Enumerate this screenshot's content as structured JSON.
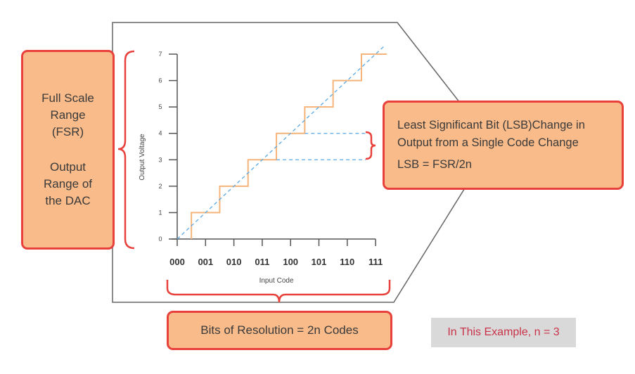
{
  "left_box": {
    "line1": "Full Scale",
    "line2": "Range",
    "line3": "(FSR)",
    "line4": "Output",
    "line5": "Range of",
    "line6": "the DAC"
  },
  "lsb_box": {
    "line1": "Least Significant Bit (LSB)Change in",
    "line2": "Output from a Single Code Change",
    "formula": "LSB = FSR/2n"
  },
  "bits_box": {
    "label": "Bits of Resolution = 2n Codes"
  },
  "example": {
    "label": "In This Example, n = 3"
  },
  "colors": {
    "box_fill": "#f9bb8a",
    "box_border": "#e8413c",
    "staircase": "#f5b47a",
    "ideal_line": "#5aa9e6",
    "brace": "#e8413c"
  },
  "chart_data": {
    "type": "line",
    "xlabel": "Input Code",
    "ylabel": "Output Voltage",
    "x_ticks": [
      "000",
      "001",
      "010",
      "011",
      "100",
      "101",
      "110",
      "111"
    ],
    "y_ticks": [
      "0",
      "1",
      "2",
      "3",
      "4",
      "5",
      "6",
      "7"
    ],
    "ylim": [
      0,
      7
    ],
    "series": [
      {
        "style": "staircase",
        "x": [
          0,
          1,
          2,
          3,
          4,
          5,
          6,
          7
        ],
        "values": [
          0,
          1,
          2,
          3,
          4,
          5,
          6,
          7
        ]
      },
      {
        "style": "dashed-ideal",
        "x": [
          0,
          7
        ],
        "values": [
          0,
          7
        ]
      }
    ],
    "annotation": {
      "lsb_from": 3,
      "lsb_to": 4
    }
  }
}
